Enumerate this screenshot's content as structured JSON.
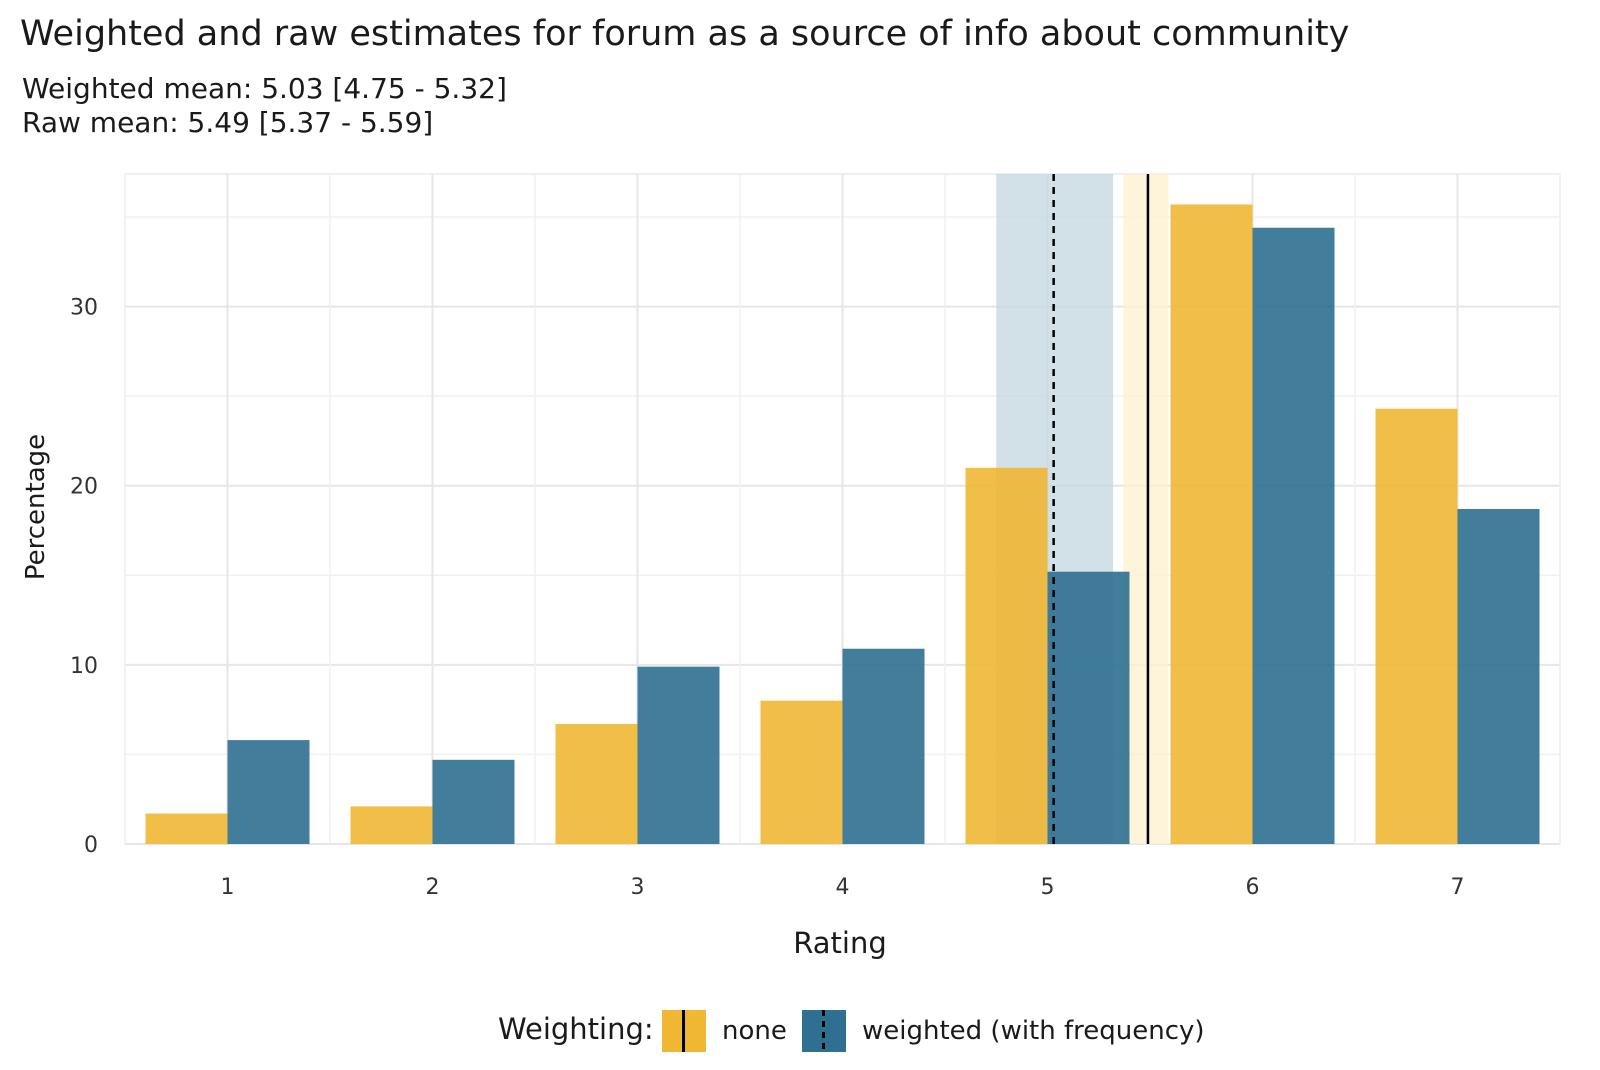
{
  "chart_data": {
    "type": "bar",
    "title": "Weighted and raw estimates for forum as a source of info about community",
    "subtitle_lines": [
      "Weighted mean: 5.03 [4.75 - 5.32]",
      "Raw mean: 5.49 [5.37 - 5.59]"
    ],
    "xlabel": "Rating",
    "ylabel": "Percentage",
    "categories": [
      "1",
      "2",
      "3",
      "4",
      "5",
      "6",
      "7"
    ],
    "series": [
      {
        "name": "none",
        "color": "#f0b733",
        "values": [
          1.7,
          2.1,
          6.7,
          8.0,
          21.0,
          35.7,
          24.3
        ]
      },
      {
        "name": "weighted (with frequency)",
        "color": "#2f6f91",
        "values": [
          5.8,
          4.7,
          9.9,
          10.9,
          15.2,
          34.4,
          18.7
        ]
      }
    ],
    "yticks": [
      0,
      10,
      20,
      30
    ],
    "ylim": [
      0,
      37.4
    ],
    "xlim": [
      0.5,
      7.5
    ],
    "reference_lines": [
      {
        "series": "none",
        "style": "solid",
        "mean": 5.49,
        "ci": [
          5.37,
          5.59
        ],
        "band_color": "#fdf0cc"
      },
      {
        "series": "weighted (with frequency)",
        "style": "dashed",
        "mean": 5.03,
        "ci": [
          4.75,
          5.32
        ],
        "band_color": "#c3d5e0"
      }
    ],
    "legend": {
      "title": "Weighting:",
      "position": "bottom",
      "items": [
        {
          "label": "none",
          "color": "#f0b733",
          "line": "solid"
        },
        {
          "label": "weighted (with frequency)",
          "color": "#2f6f91",
          "line": "dashed"
        }
      ]
    },
    "grid": true
  }
}
